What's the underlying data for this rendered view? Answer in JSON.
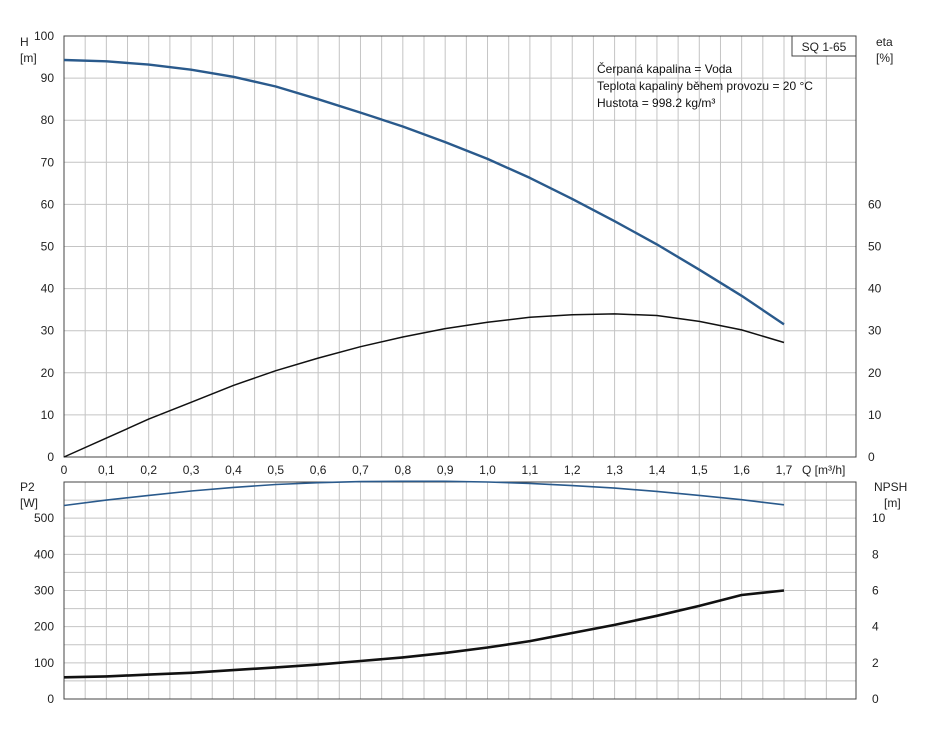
{
  "colors": {
    "blue_curve": "#2a5a8c",
    "black_curve": "#111111",
    "grid": "#c4c4c4"
  },
  "chart_data": [
    {
      "type": "line",
      "title": "SQ 1-65",
      "info_lines": [
        "Čerpaná kapalina = Voda",
        "Teplota kapaliny během provozu = 20 °C",
        "Hustota = 998.2 kg/m³"
      ],
      "xlabel": "Q [m³/h]",
      "y_left_label": [
        "H",
        "[m]"
      ],
      "y_right_label": [
        "eta",
        "[%]"
      ],
      "xlim": [
        0,
        1.87
      ],
      "ylim_left": [
        0,
        100
      ],
      "ylim_right": [
        0,
        60
      ],
      "x_ticks": [
        "0",
        "0,1",
        "0,2",
        "0,3",
        "0,4",
        "0,5",
        "0,6",
        "0,7",
        "0,8",
        "0,9",
        "1,0",
        "1,1",
        "1,2",
        "1,3",
        "1,4",
        "1,5",
        "1,6",
        "1,7"
      ],
      "y_left_ticks": [
        "0",
        "10",
        "20",
        "30",
        "40",
        "50",
        "60",
        "70",
        "80",
        "90",
        "100"
      ],
      "y_right_ticks": [
        "0",
        "10",
        "20",
        "30",
        "40",
        "50",
        "60"
      ],
      "grid": true,
      "series": [
        {
          "name": "H",
          "axis": "left",
          "color": "#2a5a8c",
          "x": [
            0,
            0.1,
            0.2,
            0.3,
            0.4,
            0.5,
            0.6,
            0.7,
            0.8,
            0.9,
            1.0,
            1.1,
            1.2,
            1.3,
            1.4,
            1.5,
            1.6,
            1.7
          ],
          "y": [
            94.3,
            94.0,
            93.2,
            92.0,
            90.3,
            88.0,
            85.0,
            81.8,
            78.5,
            74.8,
            70.8,
            66.3,
            61.3,
            56.0,
            50.5,
            44.5,
            38.3,
            31.5
          ]
        },
        {
          "name": "eta",
          "axis": "right",
          "color": "#111111",
          "x": [
            0,
            0.1,
            0.2,
            0.3,
            0.4,
            0.5,
            0.6,
            0.7,
            0.8,
            0.9,
            1.0,
            1.1,
            1.2,
            1.3,
            1.4,
            1.5,
            1.6,
            1.7
          ],
          "y": [
            0,
            4.5,
            9,
            13,
            17,
            20.5,
            23.5,
            26.2,
            28.5,
            30.5,
            32,
            33.2,
            33.8,
            34,
            33.6,
            32.2,
            30.2,
            27.2
          ]
        }
      ]
    },
    {
      "type": "line",
      "xlim": [
        0,
        1.87
      ],
      "y_left_label": [
        "P2",
        "[W]"
      ],
      "y_right_label": [
        "NPSH",
        "[m]"
      ],
      "ylim_left": [
        0,
        600
      ],
      "ylim_right": [
        0,
        12
      ],
      "y_left_ticks": [
        "0",
        "100",
        "200",
        "300",
        "400",
        "500"
      ],
      "y_right_ticks": [
        "0",
        "2",
        "4",
        "6",
        "8",
        "10"
      ],
      "grid": true,
      "series": [
        {
          "name": "P2",
          "axis": "left",
          "color": "#2a5a8c",
          "x": [
            0,
            0.1,
            0.2,
            0.3,
            0.4,
            0.5,
            0.6,
            0.7,
            0.8,
            0.9,
            1.0,
            1.1,
            1.2,
            1.3,
            1.4,
            1.5,
            1.6,
            1.7
          ],
          "y": [
            535,
            550,
            563,
            575,
            585,
            593,
            598,
            601,
            602,
            602,
            600,
            596,
            590,
            583,
            574,
            563,
            551,
            537
          ]
        },
        {
          "name": "NPSH",
          "axis": "right",
          "color": "#111111",
          "x": [
            0,
            0.1,
            0.2,
            0.3,
            0.4,
            0.5,
            0.6,
            0.7,
            0.8,
            0.9,
            1.0,
            1.1,
            1.2,
            1.3,
            1.4,
            1.5,
            1.6,
            1.7
          ],
          "y": [
            1.2,
            1.25,
            1.35,
            1.45,
            1.6,
            1.75,
            1.9,
            2.1,
            2.3,
            2.55,
            2.85,
            3.2,
            3.65,
            4.1,
            4.6,
            5.15,
            5.75,
            6.0
          ]
        }
      ]
    }
  ]
}
